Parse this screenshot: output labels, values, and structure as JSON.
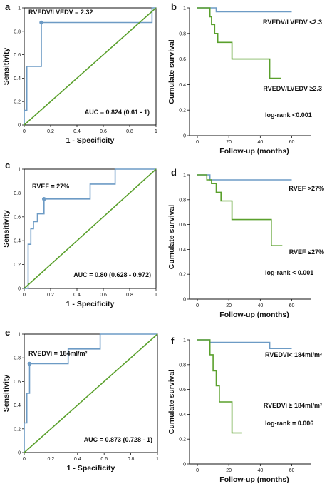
{
  "colors": {
    "roc": "#6d9bc5",
    "diagonal": "#5aa02c",
    "surv_high": "#6d9bc5",
    "surv_low": "#5aa02c"
  },
  "chart_data": [
    {
      "panel": "a",
      "type": "line",
      "xlabel": "1 - Specificity",
      "ylabel": "Sensitivity",
      "xlim": [
        0,
        1
      ],
      "ylim": [
        0,
        1
      ],
      "xticks": [
        "0",
        "0.2",
        "0.4",
        "0.6",
        "0.8",
        "1"
      ],
      "yticks": [
        "0",
        "0.2",
        "0.4",
        "0.6",
        "0.8",
        "1"
      ],
      "cutoff": {
        "label": "RVEDV/LVEDV = 2.32",
        "x": 0.13,
        "y": 0.875
      },
      "annotation": "AUC = 0.824 (0.61 - 1)",
      "series": [
        {
          "role": "roc",
          "x": [
            0,
            0,
            0.02,
            0.02,
            0.13,
            0.13,
            0.97,
            0.97,
            1
          ],
          "y": [
            0,
            0.125,
            0.125,
            0.5,
            0.5,
            0.875,
            0.875,
            1,
            1
          ]
        },
        {
          "role": "diagonal",
          "x": [
            0,
            1
          ],
          "y": [
            0,
            1
          ]
        }
      ]
    },
    {
      "panel": "b",
      "type": "line",
      "xlabel": "Follow-up (months)",
      "ylabel": "Cumulate survival",
      "xlim": [
        -5,
        72
      ],
      "ylim": [
        0,
        1
      ],
      "xticks": [
        "0",
        "20",
        "40",
        "60"
      ],
      "xtick_values": [
        0,
        20,
        40,
        60
      ],
      "yticks": [
        "0",
        "0.2",
        "0.4",
        "0.6",
        "0.8",
        "1"
      ],
      "annotation": "log-rank <0.001",
      "series": [
        {
          "name": "RVEDV/LVEDV <2.3",
          "role": "surv_high",
          "x": [
            0,
            12,
            12,
            60
          ],
          "y": [
            1,
            1,
            0.97,
            0.97
          ]
        },
        {
          "name": "RVEDV/LVEDV ≥2.3",
          "role": "surv_low",
          "x": [
            0,
            8,
            8,
            9,
            9,
            11,
            11,
            13,
            13,
            15,
            15,
            22,
            22,
            46,
            46,
            53
          ],
          "y": [
            1,
            1,
            0.93,
            0.93,
            0.87,
            0.87,
            0.8,
            0.8,
            0.73,
            0.73,
            0.73,
            0.73,
            0.6,
            0.6,
            0.45,
            0.45
          ]
        }
      ]
    },
    {
      "panel": "c",
      "type": "line",
      "xlabel": "1 - Specificity",
      "ylabel": "Sensitivity",
      "xlim": [
        0,
        1
      ],
      "ylim": [
        0,
        1
      ],
      "xticks": [
        "0",
        "0.2",
        "0.4",
        "0.6",
        "0.8",
        "1"
      ],
      "yticks": [
        "0",
        "0.2",
        "0.4",
        "0.6",
        "0.8",
        "1"
      ],
      "cutoff": {
        "label": "RVEF = 27%",
        "x": 0.15,
        "y": 0.75
      },
      "annotation": "AUC = 0.80 (0.628 - 0.972)",
      "series": [
        {
          "role": "roc",
          "x": [
            0,
            0.03,
            0.03,
            0.05,
            0.05,
            0.07,
            0.07,
            0.1,
            0.1,
            0.15,
            0.15,
            0.5,
            0.5,
            0.69,
            0.69,
            1
          ],
          "y": [
            0,
            0,
            0.37,
            0.37,
            0.5,
            0.5,
            0.56,
            0.56,
            0.625,
            0.625,
            0.75,
            0.75,
            0.875,
            0.875,
            1,
            1
          ]
        },
        {
          "role": "diagonal",
          "x": [
            0,
            1
          ],
          "y": [
            0,
            1
          ]
        }
      ]
    },
    {
      "panel": "d",
      "type": "line",
      "xlabel": "Follow-up (months)",
      "ylabel": "Cumulate survival",
      "xlim": [
        -5,
        72
      ],
      "ylim": [
        0,
        1
      ],
      "xticks": [
        "0",
        "20",
        "40",
        "60"
      ],
      "xtick_values": [
        0,
        20,
        40,
        60
      ],
      "yticks": [
        "0",
        "0.2",
        "0.4",
        "0.6",
        "0.8",
        "1"
      ],
      "annotation": "log-rank < 0.001",
      "series": [
        {
          "name": "RVEF >27%",
          "role": "surv_high",
          "x": [
            0,
            8,
            8,
            60
          ],
          "y": [
            1,
            1,
            0.96,
            0.96
          ]
        },
        {
          "name": "RVEF ≤27%",
          "role": "surv_low",
          "x": [
            0,
            6,
            6,
            9,
            9,
            12,
            12,
            15,
            15,
            22,
            22,
            47,
            47,
            54
          ],
          "y": [
            1,
            1,
            0.96,
            0.96,
            0.93,
            0.93,
            0.86,
            0.86,
            0.79,
            0.79,
            0.64,
            0.64,
            0.43,
            0.43
          ]
        }
      ]
    },
    {
      "panel": "e",
      "type": "line",
      "xlabel": "1 - Specificity",
      "ylabel": "Sensitivity",
      "xlim": [
        0,
        1
      ],
      "ylim": [
        0,
        1
      ],
      "xticks": [
        "0",
        "0.2",
        "0.4",
        "0.6",
        "0.8",
        "1"
      ],
      "yticks": [
        "0",
        "0.2",
        "0.4",
        "0.6",
        "0.8",
        "1"
      ],
      "cutoff": {
        "label": "RVEDVi = 184ml/m²",
        "x": 0.04,
        "y": 0.75
      },
      "annotation": "AUC = 0.873 (0.728 - 1)",
      "series": [
        {
          "role": "roc",
          "x": [
            0,
            0,
            0.02,
            0.02,
            0.04,
            0.04,
            0.33,
            0.33,
            0.57,
            0.57,
            1
          ],
          "y": [
            0,
            0.25,
            0.25,
            0.5,
            0.5,
            0.75,
            0.75,
            0.875,
            0.875,
            1,
            1
          ]
        },
        {
          "role": "diagonal",
          "x": [
            0,
            1
          ],
          "y": [
            0,
            1
          ]
        }
      ]
    },
    {
      "panel": "f",
      "type": "line",
      "xlabel": "Follow-up (months)",
      "ylabel": "Cumulate survival",
      "xlim": [
        -5,
        72
      ],
      "ylim": [
        0,
        1
      ],
      "xticks": [
        "0",
        "20",
        "40",
        "60"
      ],
      "xtick_values": [
        0,
        20,
        40,
        60
      ],
      "yticks": [
        "0",
        "0.2",
        "0.4",
        "0.6",
        "0.8",
        "1"
      ],
      "annotation": "log-rank = 0.006",
      "series": [
        {
          "name": "RVEDVi< 184ml/m²",
          "role": "surv_high",
          "x": [
            0,
            8,
            8,
            46,
            46,
            60
          ],
          "y": [
            1,
            1,
            0.98,
            0.98,
            0.93,
            0.93
          ]
        },
        {
          "name": "RVEDVi ≥ 184ml/m²",
          "role": "surv_low",
          "x": [
            0,
            8,
            8,
            10,
            10,
            12,
            12,
            14,
            14,
            16,
            16,
            22,
            22,
            28
          ],
          "y": [
            1,
            1,
            0.88,
            0.88,
            0.75,
            0.75,
            0.63,
            0.63,
            0.5,
            0.5,
            0.5,
            0.5,
            0.25,
            0.25
          ]
        }
      ]
    }
  ]
}
